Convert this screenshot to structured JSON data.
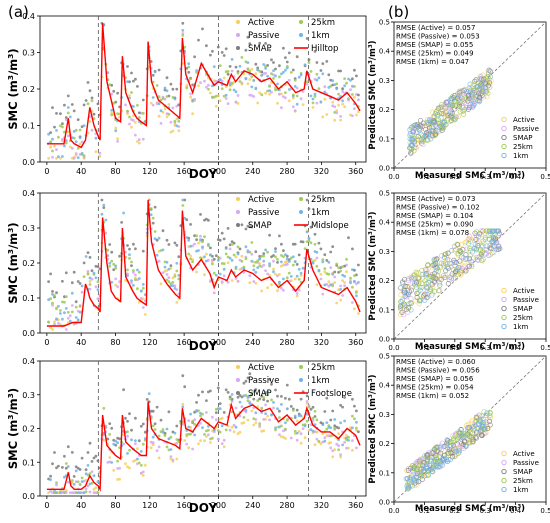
{
  "panel_labels": [
    "(a)",
    "(b)"
  ],
  "legend_symbols": {
    "Active": "#f6cf5a",
    "Passive": "#d6a6f3",
    "SMAP": "#7d7d7d",
    "25km": "#9bcb4f",
    "1km": "#6fb4e6",
    "line": "#ff0000"
  },
  "chart_data": [
    {
      "type": "scatter",
      "panel": "(a)",
      "station": "Hilltop",
      "xlabel": "DOY",
      "ylabel": "SMC (m³/m³)",
      "xlim": [
        -8,
        372
      ],
      "ylim": [
        0,
        0.4
      ],
      "xticks": [
        0,
        40,
        80,
        120,
        160,
        200,
        240,
        280,
        320,
        360
      ],
      "yticks": [
        0.0,
        0.1,
        0.2,
        0.3,
        0.4
      ],
      "vlines": [
        60,
        200,
        305
      ],
      "legend": [
        "Active",
        "Passive",
        "SMAP",
        "Hilltop",
        "25km",
        "1km"
      ],
      "line": {
        "name": "Hilltop",
        "x": [
          0,
          10,
          20,
          25,
          28,
          32,
          40,
          45,
          50,
          55,
          60,
          62,
          65,
          70,
          80,
          86,
          88,
          92,
          100,
          105,
          110,
          116,
          118,
          122,
          130,
          140,
          150,
          155,
          158,
          162,
          170,
          180,
          190,
          195,
          200,
          210,
          215,
          220,
          230,
          240,
          250,
          260,
          270,
          280,
          290,
          300,
          303,
          310,
          320,
          330,
          340,
          350,
          360,
          365
        ],
        "y": [
          0.05,
          0.05,
          0.05,
          0.12,
          0.06,
          0.05,
          0.04,
          0.06,
          0.15,
          0.1,
          0.07,
          0.06,
          0.38,
          0.22,
          0.12,
          0.11,
          0.29,
          0.19,
          0.14,
          0.12,
          0.11,
          0.1,
          0.33,
          0.22,
          0.17,
          0.15,
          0.13,
          0.12,
          0.34,
          0.24,
          0.19,
          0.27,
          0.23,
          0.21,
          0.22,
          0.21,
          0.24,
          0.22,
          0.25,
          0.24,
          0.22,
          0.23,
          0.2,
          0.22,
          0.19,
          0.2,
          0.25,
          0.2,
          0.19,
          0.18,
          0.17,
          0.19,
          0.16,
          0.14
        ]
      },
      "scatter_series": [
        "Active",
        "Passive",
        "SMAP",
        "25km",
        "1km"
      ]
    },
    {
      "type": "scatter",
      "panel": "(a)",
      "station": "Midslope",
      "xlabel": "DOY",
      "ylabel": "SMC (m³/m³)",
      "xlim": [
        -8,
        372
      ],
      "ylim": [
        0,
        0.4
      ],
      "xticks": [
        0,
        40,
        80,
        120,
        160,
        200,
        240,
        280,
        320,
        360
      ],
      "yticks": [
        0.0,
        0.1,
        0.2,
        0.3,
        0.4
      ],
      "vlines": [
        60,
        200,
        305
      ],
      "legend": [
        "Active",
        "Passive",
        "SMAP",
        "Midslope",
        "25km",
        "1km"
      ],
      "line": {
        "name": "Midslope",
        "x": [
          0,
          10,
          20,
          30,
          40,
          45,
          48,
          50,
          55,
          60,
          62,
          65,
          70,
          75,
          80,
          86,
          88,
          92,
          100,
          105,
          110,
          116,
          118,
          122,
          130,
          140,
          150,
          155,
          158,
          162,
          170,
          180,
          190,
          195,
          200,
          210,
          215,
          220,
          230,
          240,
          250,
          260,
          270,
          280,
          290,
          300,
          303,
          310,
          320,
          330,
          340,
          350,
          360,
          365
        ],
        "y": [
          0.02,
          0.02,
          0.02,
          0.03,
          0.03,
          0.14,
          0.12,
          0.1,
          0.08,
          0.07,
          0.06,
          0.33,
          0.2,
          0.12,
          0.1,
          0.09,
          0.3,
          0.16,
          0.12,
          0.1,
          0.09,
          0.08,
          0.38,
          0.26,
          0.18,
          0.14,
          0.11,
          0.1,
          0.35,
          0.22,
          0.18,
          0.21,
          0.17,
          0.13,
          0.16,
          0.15,
          0.18,
          0.16,
          0.18,
          0.17,
          0.15,
          0.16,
          0.13,
          0.15,
          0.12,
          0.15,
          0.24,
          0.18,
          0.13,
          0.12,
          0.11,
          0.13,
          0.09,
          0.06
        ]
      },
      "scatter_series": [
        "Active",
        "Passive",
        "SMAP",
        "25km",
        "1km"
      ]
    },
    {
      "type": "scatter",
      "panel": "(a)",
      "station": "Footslope",
      "xlabel": "DOY",
      "ylabel": "SMC (m³/m³)",
      "xlim": [
        -8,
        372
      ],
      "ylim": [
        0,
        0.4
      ],
      "xticks": [
        0,
        40,
        80,
        120,
        160,
        200,
        240,
        280,
        320,
        360
      ],
      "yticks": [
        0.0,
        0.1,
        0.2,
        0.3,
        0.4
      ],
      "vlines": [
        60,
        200,
        305
      ],
      "legend": [
        "Active",
        "Passive",
        "SMAP",
        "Footslope",
        "25km",
        "1km"
      ],
      "line": {
        "name": "Footslope",
        "x": [
          0,
          10,
          20,
          25,
          28,
          32,
          40,
          45,
          50,
          55,
          60,
          62,
          65,
          70,
          80,
          86,
          88,
          92,
          100,
          105,
          110,
          116,
          118,
          122,
          130,
          140,
          150,
          155,
          158,
          162,
          170,
          180,
          190,
          195,
          200,
          210,
          215,
          220,
          230,
          240,
          250,
          260,
          270,
          280,
          290,
          300,
          303,
          310,
          320,
          330,
          340,
          350,
          360,
          365
        ],
        "y": [
          0.02,
          0.02,
          0.02,
          0.07,
          0.03,
          0.02,
          0.02,
          0.03,
          0.06,
          0.04,
          0.03,
          0.02,
          0.24,
          0.15,
          0.12,
          0.11,
          0.24,
          0.16,
          0.14,
          0.13,
          0.12,
          0.12,
          0.28,
          0.2,
          0.17,
          0.16,
          0.15,
          0.14,
          0.26,
          0.2,
          0.19,
          0.23,
          0.21,
          0.2,
          0.22,
          0.21,
          0.27,
          0.23,
          0.26,
          0.27,
          0.25,
          0.26,
          0.22,
          0.24,
          0.21,
          0.23,
          0.26,
          0.21,
          0.19,
          0.19,
          0.17,
          0.2,
          0.18,
          0.15
        ]
      },
      "scatter_series": [
        "Active",
        "Passive",
        "SMAP",
        "25km",
        "1km"
      ]
    },
    {
      "type": "scatter",
      "panel": "(b)",
      "xlabel": "Measured SMC (m³/m³)",
      "ylabel": "Predicted SMC (m³/m³)",
      "xlim": [
        0,
        0.5
      ],
      "ylim": [
        0,
        0.5
      ],
      "xticks": [
        0.0,
        0.1,
        0.2,
        0.3,
        0.4,
        0.5
      ],
      "yticks": [
        0.0,
        0.1,
        0.2,
        0.3,
        0.4,
        0.5
      ],
      "rmse": [
        "RMSE (Active) = 0.057",
        "RMSE (Passive) = 0.053",
        "RMSE (SMAP) = 0.055",
        "RMSE (25km) = 0.049",
        "RMSE (1km) = 0.047"
      ],
      "legend": [
        "Active",
        "Passive",
        "SMAP",
        "25km",
        "1km"
      ],
      "cloud": {
        "xmin": 0.05,
        "xmax": 0.32,
        "slope": 0.78,
        "intercept": 0.05,
        "spread": 0.045
      }
    },
    {
      "type": "scatter",
      "panel": "(b)",
      "xlabel": "Measured SMC (m³/m³)",
      "ylabel": "Predicted SMC (m³/m³)",
      "xlim": [
        0,
        0.5
      ],
      "ylim": [
        0,
        0.5
      ],
      "xticks": [
        0.0,
        0.1,
        0.2,
        0.3,
        0.4,
        0.5
      ],
      "yticks": [
        0.0,
        0.1,
        0.2,
        0.3,
        0.4,
        0.5
      ],
      "rmse": [
        "RMSE (Active) = 0.073",
        "RMSE (Passive) = 0.102",
        "RMSE (SMAP) = 0.104",
        "RMSE (25km) = 0.090",
        "RMSE (1km) = 0.078"
      ],
      "legend": [
        "Active",
        "Passive",
        "SMAP",
        "25km",
        "1km"
      ],
      "cloud": {
        "xmin": 0.02,
        "xmax": 0.35,
        "slope": 0.7,
        "intercept": 0.12,
        "spread": 0.06
      }
    },
    {
      "type": "scatter",
      "panel": "(b)",
      "xlabel": "Measured SMC (m³/m³)",
      "ylabel": "Predicted SMC (m³/m³)",
      "xlim": [
        0,
        0.5
      ],
      "ylim": [
        0,
        0.5
      ],
      "xticks": [
        0.0,
        0.1,
        0.2,
        0.3,
        0.4,
        0.5
      ],
      "yticks": [
        0.0,
        0.1,
        0.2,
        0.3,
        0.4,
        0.5
      ],
      "rmse": [
        "RMSE (Active) = 0.060",
        "RMSE (Passive) = 0.056",
        "RMSE (SMAP) = 0.056",
        "RMSE (25km) = 0.054",
        "RMSE (1km) = 0.052"
      ],
      "legend": [
        "Active",
        "Passive",
        "SMAP",
        "25km",
        "1km"
      ],
      "cloud": {
        "xmin": 0.04,
        "xmax": 0.32,
        "slope": 0.78,
        "intercept": 0.04,
        "spread": 0.04
      }
    }
  ]
}
